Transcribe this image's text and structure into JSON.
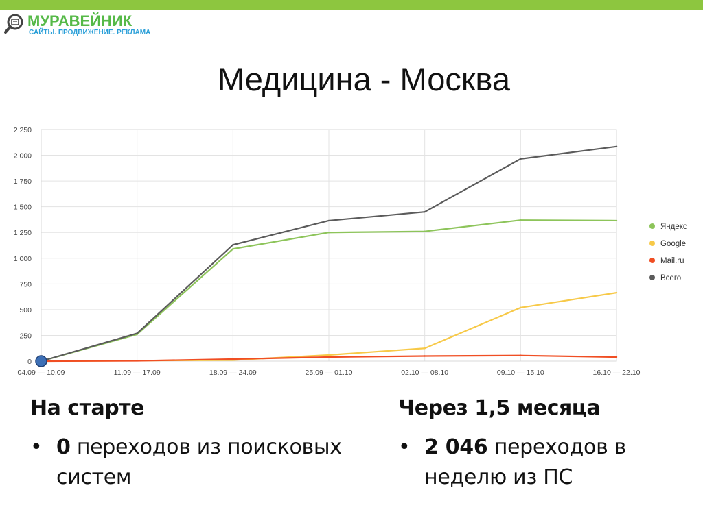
{
  "brand": {
    "name": "МУРАВЕЙНИК",
    "tagline": "САЙТЫ. ПРОДВИЖЕНИЕ. РЕКЛАМА",
    "accent_color": "#8dc63f"
  },
  "slide": {
    "title": "Медицина - Москва"
  },
  "chart_data": {
    "type": "line",
    "categories": [
      "04.09 — 10.09",
      "11.09 — 17.09",
      "18.09 — 24.09",
      "25.09 — 01.10",
      "02.10 — 08.10",
      "09.10 — 15.10",
      "16.10 — 22.10"
    ],
    "series": [
      {
        "name": "Яндекс",
        "color": "#8dc45a",
        "values": [
          0,
          260,
          1090,
          1250,
          1260,
          1370,
          1365
        ]
      },
      {
        "name": "Google",
        "color": "#f7c948",
        "values": [
          0,
          5,
          10,
          60,
          125,
          520,
          665
        ]
      },
      {
        "name": "Mail.ru",
        "color": "#f04e23",
        "values": [
          0,
          3,
          20,
          40,
          50,
          55,
          40
        ]
      },
      {
        "name": "Всего",
        "color": "#5b5b5b",
        "values": [
          0,
          270,
          1130,
          1365,
          1450,
          1965,
          2085
        ]
      }
    ],
    "y_ticks": [
      "0",
      "250",
      "500",
      "750",
      "1 000",
      "1 250",
      "1 500",
      "1 750",
      "2 000",
      "2 250"
    ],
    "ylim": [
      0,
      2250
    ],
    "grid": true,
    "legend_position": "right",
    "start_marker_color": "#3d6fb5"
  },
  "results": {
    "left": {
      "heading": "На старте",
      "strong": "0",
      "text": " переходов из поисковых систем"
    },
    "right": {
      "heading": "Через 1,5 месяца",
      "strong": "2 046",
      "text": " переходов в неделю из ПС"
    },
    "bullet": "•"
  }
}
